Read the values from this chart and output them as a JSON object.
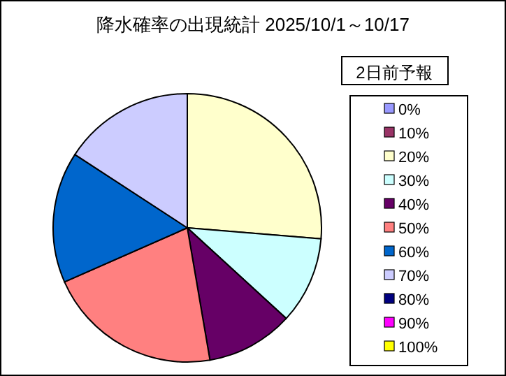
{
  "chart_data": {
    "type": "pie",
    "title": "降水確率の出現統計 2025/10/1～10/17",
    "legend_title": "2日前予報",
    "legend": "right",
    "categories": [
      "0%",
      "10%",
      "20%",
      "30%",
      "40%",
      "50%",
      "60%",
      "70%",
      "80%",
      "90%",
      "100%"
    ],
    "values": [
      0,
      0,
      26.3,
      10.5,
      10.5,
      21.1,
      15.8,
      15.8,
      0,
      0,
      0
    ],
    "colors": [
      "#9999ff",
      "#993366",
      "#ffffcc",
      "#ccffff",
      "#660066",
      "#ff8080",
      "#0066cc",
      "#ccccff",
      "#000080",
      "#ff00ff",
      "#ffff00"
    ]
  }
}
